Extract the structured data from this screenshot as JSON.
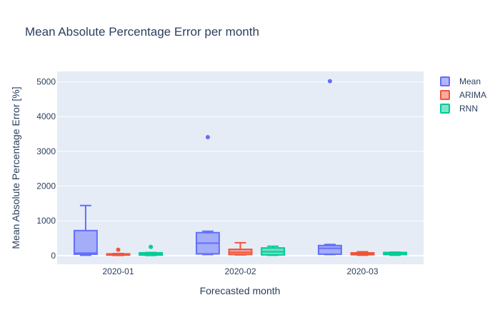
{
  "chart_data": {
    "type": "box",
    "title": "Mean Absolute Percentage Error per month",
    "xlabel": "Forecasted month",
    "ylabel": "Mean Absolute Percentage Error [%]",
    "categories": [
      "2020-01",
      "2020-02",
      "2020-03"
    ],
    "ylim": [
      -250,
      5300
    ],
    "yticks": [
      0,
      1000,
      2000,
      3000,
      4000,
      5000
    ],
    "grid": true,
    "legend_position": "right",
    "series": [
      {
        "name": "Mean",
        "color": "#636efa",
        "fill": "rgba(99,110,250,0.5)",
        "boxes": [
          {
            "category": "2020-01",
            "min": 10,
            "q1": 40,
            "median": 70,
            "q3": 720,
            "max": 1440,
            "outliers": []
          },
          {
            "category": "2020-02",
            "min": 30,
            "q1": 50,
            "median": 360,
            "q3": 660,
            "max": 700,
            "outliers": [
              3410
            ]
          },
          {
            "category": "2020-03",
            "min": 30,
            "q1": 40,
            "median": 210,
            "q3": 290,
            "max": 320,
            "outliers": [
              5020
            ]
          }
        ]
      },
      {
        "name": "ARIMA",
        "color": "#ef553b",
        "fill": "rgba(239,85,59,0.5)",
        "boxes": [
          {
            "category": "2020-01",
            "min": 5,
            "q1": 15,
            "median": 35,
            "q3": 50,
            "max": 60,
            "outliers": [
              170
            ]
          },
          {
            "category": "2020-02",
            "min": 20,
            "q1": 30,
            "median": 90,
            "q3": 180,
            "max": 370,
            "outliers": []
          },
          {
            "category": "2020-03",
            "min": 10,
            "q1": 25,
            "median": 50,
            "q3": 80,
            "max": 110,
            "outliers": []
          }
        ]
      },
      {
        "name": "RNN",
        "color": "#00cc96",
        "fill": "rgba(0,204,150,0.5)",
        "boxes": [
          {
            "category": "2020-01",
            "min": 5,
            "q1": 15,
            "median": 50,
            "q3": 80,
            "max": 90,
            "outliers": [
              250
            ]
          },
          {
            "category": "2020-02",
            "min": 10,
            "q1": 20,
            "median": 110,
            "q3": 220,
            "max": 270,
            "outliers": []
          },
          {
            "category": "2020-03",
            "min": 10,
            "q1": 30,
            "median": 60,
            "q3": 90,
            "max": 100,
            "outliers": []
          }
        ]
      }
    ]
  }
}
